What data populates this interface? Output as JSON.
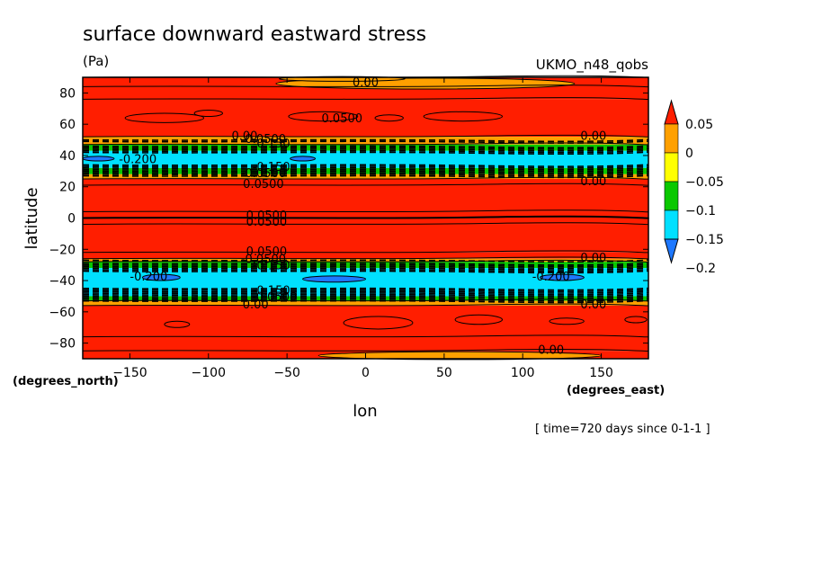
{
  "chart_data": {
    "type": "heatmap",
    "title": "surface downward eastward stress",
    "units": "(Pa)",
    "dataset": "UKMO_n48_qobs",
    "xlabel": "lon",
    "ylabel": "latitude",
    "x_unit_label": "(degrees_east)",
    "y_unit_label": "(degrees_north)",
    "time_note": "[ time=720 days since 0-1-1 ]",
    "xlim": [
      -180,
      180
    ],
    "ylim": [
      -90,
      90
    ],
    "x_ticks": [
      -150,
      -100,
      -50,
      0,
      50,
      100,
      150
    ],
    "x_tick_labels": [
      "−150",
      "−100",
      "−50",
      "0",
      "50",
      "100",
      "150"
    ],
    "y_ticks": [
      -80,
      -60,
      -40,
      -20,
      0,
      20,
      40,
      60,
      80
    ],
    "y_tick_labels": [
      "−80",
      "−60",
      "−40",
      "−20",
      "0",
      "20",
      "40",
      "60",
      "80"
    ],
    "colorbar": {
      "levels": [
        -0.2,
        -0.15,
        -0.1,
        -0.05,
        0,
        0.05
      ],
      "labels": [
        "−0.2",
        "−0.15",
        "−0.1",
        "−0.05",
        "0",
        "0.05"
      ],
      "colors": [
        "#1e78ff",
        "#00e0ff",
        "#0ac800",
        "#ffff00",
        "#ffa000",
        "#ff1e00"
      ]
    },
    "bands": [
      {
        "lat_min": 76,
        "lat_max": 90,
        "value": 0.02
      },
      {
        "lat_min": 52,
        "lat_max": 76,
        "value": 0.03
      },
      {
        "lat_min": 47,
        "lat_max": 52,
        "value": -0.04
      },
      {
        "lat_min": 43,
        "lat_max": 47,
        "value": -0.12
      },
      {
        "lat_min": 32,
        "lat_max": 43,
        "value": -0.18
      },
      {
        "lat_min": 28,
        "lat_max": 32,
        "value": -0.12
      },
      {
        "lat_min": 25,
        "lat_max": 28,
        "value": -0.04
      },
      {
        "lat_min": 21,
        "lat_max": 25,
        "value": 0.03
      },
      {
        "lat_min": 4,
        "lat_max": 21,
        "value": 0.08
      },
      {
        "lat_min": 0,
        "lat_max": 4,
        "value": 0.03
      },
      {
        "lat_min": -4,
        "lat_max": 0,
        "value": 0.03
      },
      {
        "lat_min": -22,
        "lat_max": -4,
        "value": 0.08
      },
      {
        "lat_min": -26,
        "lat_max": -22,
        "value": 0.03
      },
      {
        "lat_min": -28,
        "lat_max": -26,
        "value": -0.04
      },
      {
        "lat_min": -32,
        "lat_max": -28,
        "value": -0.12
      },
      {
        "lat_min": -50,
        "lat_max": -32,
        "value": -0.18
      },
      {
        "lat_min": -53,
        "lat_max": -50,
        "value": -0.12
      },
      {
        "lat_min": -56,
        "lat_max": -53,
        "value": -0.04
      },
      {
        "lat_min": -85,
        "lat_max": -56,
        "value": 0.03
      },
      {
        "lat_min": -90,
        "lat_max": -85,
        "value": 0.02
      }
    ],
    "patches": [
      {
        "lon": -128,
        "lat": 64,
        "dlon": 25,
        "dlat": 3,
        "value": 0.06
      },
      {
        "lon": -100,
        "lat": 67,
        "dlon": 9,
        "dlat": 2,
        "value": 0.06
      },
      {
        "lon": -27,
        "lat": 65,
        "dlon": 22,
        "dlat": 3,
        "value": 0.06
      },
      {
        "lon": 15,
        "lat": 64,
        "dlon": 9,
        "dlat": 2,
        "value": 0.06
      },
      {
        "lon": 62,
        "lat": 65,
        "dlon": 25,
        "dlat": 3,
        "value": 0.06
      },
      {
        "lon": 38,
        "lat": 86,
        "dlon": 95,
        "dlat": 3.5,
        "value": -0.01
      },
      {
        "lon": -15,
        "lat": 89,
        "dlon": 40,
        "dlat": 1.5,
        "value": -0.01
      },
      {
        "lon": -120,
        "lat": -68,
        "dlon": 8,
        "dlat": 2,
        "value": 0.06
      },
      {
        "lon": 8,
        "lat": -67,
        "dlon": 22,
        "dlat": 4,
        "value": 0.06
      },
      {
        "lon": 72,
        "lat": -65,
        "dlon": 15,
        "dlat": 3,
        "value": 0.06
      },
      {
        "lon": 128,
        "lat": -66,
        "dlon": 11,
        "dlat": 2,
        "value": 0.06
      },
      {
        "lon": 172,
        "lat": -65,
        "dlon": 7,
        "dlat": 2,
        "value": 0.06
      },
      {
        "lon": 60,
        "lat": -88,
        "dlon": 90,
        "dlat": 2.5,
        "value": -0.01
      },
      {
        "lon": -40,
        "lat": 38,
        "dlon": 8,
        "dlat": 1.5,
        "value": -0.21
      },
      {
        "lon": -170,
        "lat": 38,
        "dlon": 10,
        "dlat": 1.5,
        "value": -0.21
      },
      {
        "lon": 125,
        "lat": -38,
        "dlon": 14,
        "dlat": 2,
        "value": -0.21
      },
      {
        "lon": -130,
        "lat": -38,
        "dlon": 12,
        "dlat": 2,
        "value": -0.21
      },
      {
        "lon": -20,
        "lat": -39,
        "dlon": 20,
        "dlat": 2,
        "value": -0.21
      }
    ],
    "contour_labels": [
      {
        "text": "0.00",
        "lon": 0,
        "lat": 87
      },
      {
        "text": "0.0500",
        "lon": -15,
        "lat": 64
      },
      {
        "text": "0.00",
        "lon": -77,
        "lat": 53
      },
      {
        "text": "-0.0500",
        "lon": -65,
        "lat": 51
      },
      {
        "text": "-0.150",
        "lon": -60,
        "lat": 48
      },
      {
        "text": "0.00",
        "lon": 145,
        "lat": 53
      },
      {
        "text": "-0.200",
        "lon": -145,
        "lat": 38
      },
      {
        "text": "-0.150",
        "lon": -60,
        "lat": 33
      },
      {
        "text": "-0.0500",
        "lon": -65,
        "lat": 29
      },
      {
        "text": "0.0500",
        "lon": -65,
        "lat": 22
      },
      {
        "text": "0.00",
        "lon": 145,
        "lat": 24
      },
      {
        "text": "0.0500",
        "lon": -63,
        "lat": 2
      },
      {
        "text": "0.0500",
        "lon": -63,
        "lat": -2
      },
      {
        "text": "0.0500",
        "lon": -63,
        "lat": -21
      },
      {
        "text": "0.00",
        "lon": 145,
        "lat": -25
      },
      {
        "text": "-0.0500",
        "lon": -65,
        "lat": -26
      },
      {
        "text": "-0.150",
        "lon": -60,
        "lat": -30
      },
      {
        "text": "-0.200",
        "lon": -138,
        "lat": -37
      },
      {
        "text": "-0.200",
        "lon": 118,
        "lat": -37
      },
      {
        "text": "-0.150",
        "lon": -60,
        "lat": -46
      },
      {
        "text": "-0.0500",
        "lon": -58,
        "lat": -50
      },
      {
        "text": "0.00",
        "lon": -70,
        "lat": -55
      },
      {
        "text": "0.00",
        "lon": 145,
        "lat": -55
      },
      {
        "text": "0.00",
        "lon": 118,
        "lat": -84
      }
    ],
    "solid_contours_lat": [
      90,
      84,
      76,
      52,
      47,
      25,
      21,
      4,
      0,
      -4,
      -22,
      -26,
      -28,
      -53,
      -56,
      -76,
      -85
    ],
    "dashed_contours_lat": [
      50,
      49,
      46,
      45,
      44,
      43,
      42,
      34,
      33,
      32,
      31,
      30,
      29,
      28,
      27,
      -27,
      -29,
      -30,
      -31,
      -32,
      -33,
      -34,
      -45,
      -46,
      -47,
      -48,
      -49,
      -50,
      -51,
      -52,
      -53
    ]
  }
}
